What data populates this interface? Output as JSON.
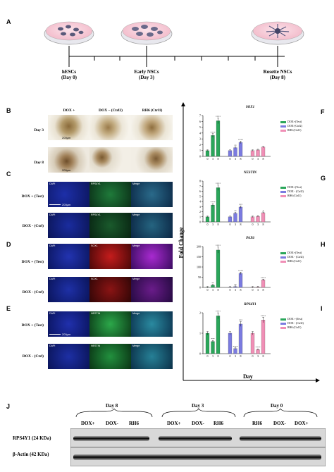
{
  "panel_letters": {
    "A": "A",
    "B": "B",
    "C": "C",
    "D": "D",
    "E": "E",
    "F": "F",
    "G": "G",
    "H": "H",
    "I": "I",
    "J": "J"
  },
  "timeline": {
    "stages": [
      {
        "name": "hESCs",
        "day": "(Day 0)"
      },
      {
        "name": "Early NSCs",
        "day": "(Day 3)"
      },
      {
        "name": "Rosette NSCs",
        "day": "(Day 8)"
      }
    ]
  },
  "microscopy": {
    "b_columns": [
      "DOX +",
      "DOX – (Ctrl2)",
      "RH6 (Ctrl1)"
    ],
    "b_rows": [
      "Day 3",
      "Day 8"
    ],
    "scale": "200µm",
    "c": {
      "rows": [
        "DOX + (Test)",
        "DOX - (Ctrl)"
      ],
      "tags": [
        "DAPI",
        "RPS4Y1",
        "Merge"
      ]
    },
    "d": {
      "rows": [
        "DOX + (Test)",
        "DOX - (Ctrl)"
      ],
      "tags": [
        "DAPI",
        "SOX1",
        "Merge"
      ]
    },
    "e": {
      "rows": [
        "DOX + (Test)",
        "DOX - (Ctrl)"
      ],
      "tags": [
        "DAPI",
        "NESTIN",
        "Merge"
      ]
    }
  },
  "axes": {
    "y": "Fold Change",
    "x": "Day"
  },
  "chart_data": [
    {
      "type": "bar",
      "title": "SOX1",
      "categories": [
        "0",
        "3",
        "8"
      ],
      "ylim": [
        0,
        7
      ],
      "yticks": [
        "0",
        "1",
        "2",
        "3",
        "4",
        "5",
        "6",
        "7"
      ],
      "series": [
        {
          "name": "DOX+(Test)",
          "color": "#2aa65a",
          "values": [
            1,
            3.6,
            6.1
          ],
          "sig": [
            "",
            "****",
            "****"
          ]
        },
        {
          "name": "DOX-(Ctrl2)",
          "color": "#7b7be0",
          "values": [
            1,
            1.5,
            2.4
          ],
          "sig": [
            "",
            "**",
            "****"
          ]
        },
        {
          "name": "RH6 (Ctrl1)",
          "color": "#f08fb6",
          "values": [
            1,
            1.1,
            1.6
          ],
          "sig": [
            "",
            "",
            ""
          ]
        }
      ]
    },
    {
      "type": "bar",
      "title": "NESTIN",
      "categories": [
        "0",
        "3",
        "8"
      ],
      "ylim": [
        0,
        8
      ],
      "yticks": [
        "0",
        "1",
        "2",
        "3",
        "4",
        "5",
        "6",
        "7",
        "8"
      ],
      "series": [
        {
          "name": "DOX+(Test)",
          "color": "#2aa65a",
          "values": [
            1,
            3.3,
            6.7
          ],
          "sig": [
            "",
            "****",
            "****"
          ]
        },
        {
          "name": "DOX - (Ctrl2)",
          "color": "#7b7be0",
          "values": [
            1,
            1.7,
            2.9
          ],
          "sig": [
            "",
            "**",
            "***"
          ]
        },
        {
          "name": "RH6 (Ctrl1)",
          "color": "#f08fb6",
          "values": [
            1,
            1.1,
            1.8
          ],
          "sig": [
            "",
            "",
            "*"
          ]
        }
      ]
    },
    {
      "type": "bar",
      "title": "PAX6",
      "categories": [
        "0",
        "3",
        "8"
      ],
      "ylim": [
        0,
        200
      ],
      "yticks": [
        "0",
        "50",
        "100",
        "150",
        "200"
      ],
      "series": [
        {
          "name": "DOX+(Test)",
          "color": "#2aa65a",
          "values": [
            1,
            11,
            183
          ],
          "sig": [
            "",
            "**",
            "****"
          ]
        },
        {
          "name": "DOX - (Ctrl2)",
          "color": "#7b7be0",
          "values": [
            1,
            4,
            69
          ],
          "sig": [
            "",
            "**",
            "****"
          ]
        },
        {
          "name": "RH6 (Ctrl1)",
          "color": "#f08fb6",
          "values": [
            1,
            2,
            37
          ],
          "sig": [
            "",
            "",
            "****"
          ]
        }
      ]
    },
    {
      "type": "bar",
      "title": "RPS4Y1",
      "categories": [
        "0",
        "3",
        "8"
      ],
      "ylim": [
        0,
        2
      ],
      "yticks": [
        "0",
        "1",
        "2"
      ],
      "series": [
        {
          "name": "DOX +(Test)",
          "color": "#2aa65a",
          "values": [
            1,
            0.6,
            1.85
          ],
          "sig": [
            "",
            "***",
            "****"
          ]
        },
        {
          "name": "DOX - (Ctrl2)",
          "color": "#7b7be0",
          "values": [
            1,
            0.25,
            1.45
          ],
          "sig": [
            "",
            "****",
            "***"
          ]
        },
        {
          "name": "RH6 (Ctrl1)",
          "color": "#f08fb6",
          "values": [
            1,
            0.2,
            1.65
          ],
          "sig": [
            "",
            "****",
            "****"
          ]
        }
      ]
    }
  ],
  "blot": {
    "day_groups": [
      "Day 8",
      "Day 3",
      "Day 0"
    ],
    "lanes": [
      "DOX+",
      "DOX-",
      "RH6",
      "DOX+",
      "DOX-",
      "RH6",
      "RH6",
      "DOX-",
      "DOX+"
    ],
    "rows": [
      "RPS4Y1 (24 KDa)",
      "β-Actin (42 KDa)"
    ]
  }
}
